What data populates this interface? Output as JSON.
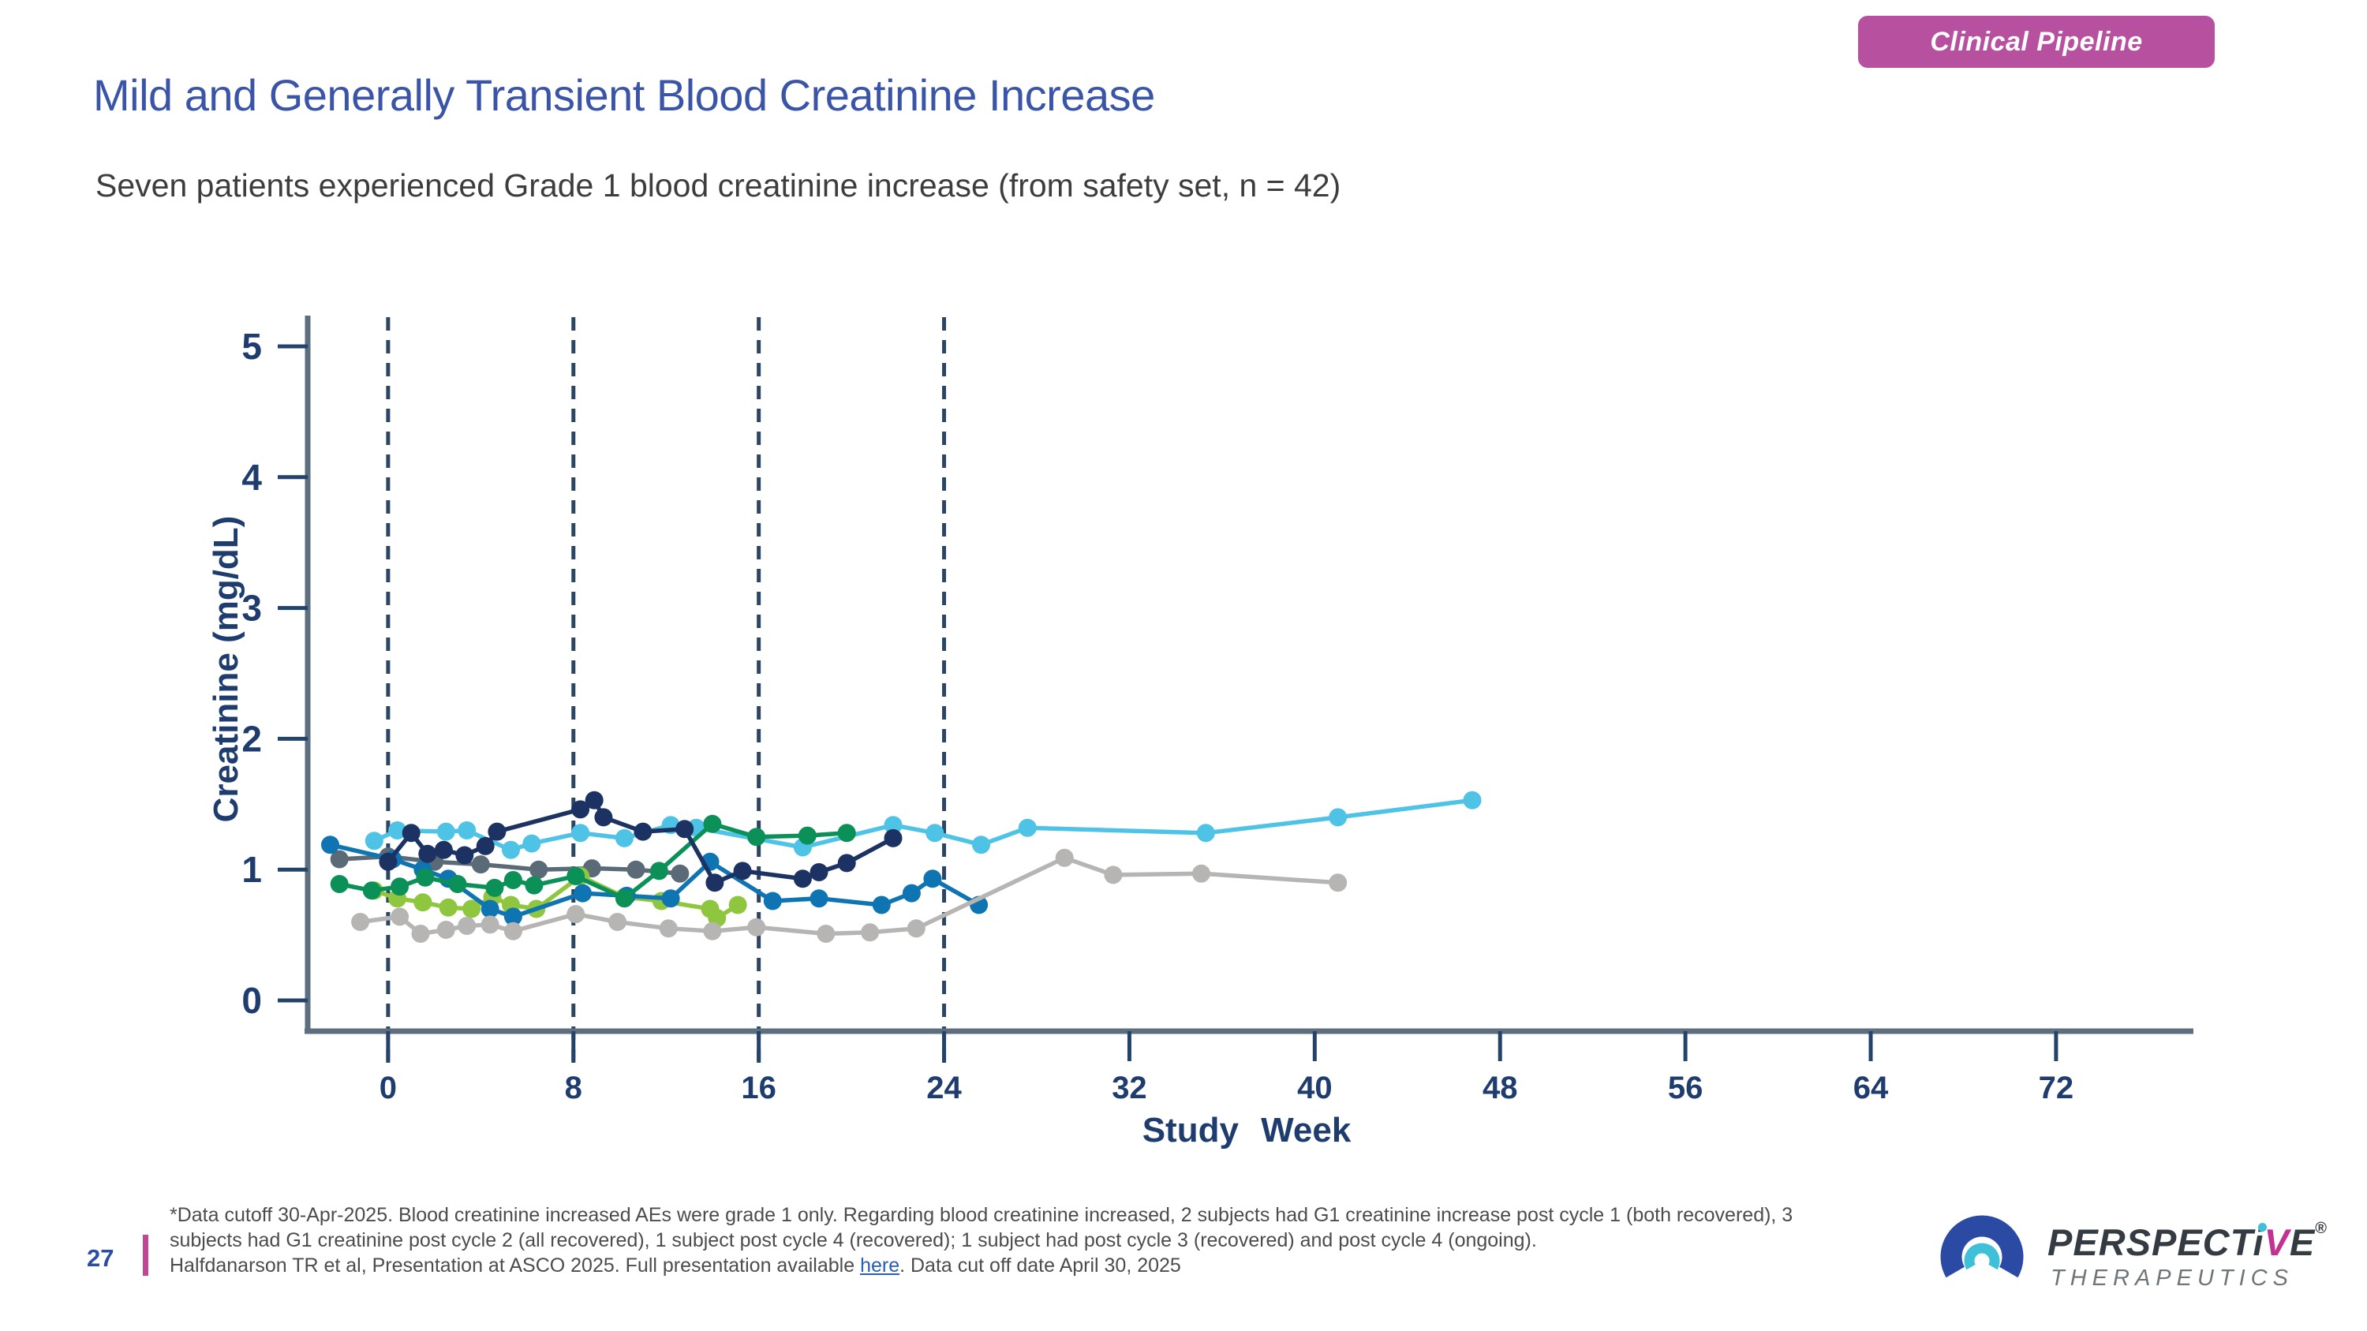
{
  "badge": {
    "label": "Clinical Pipeline",
    "bg_color": "#b6509f"
  },
  "header": {
    "title": "Mild and Generally Transient Blood Creatinine Increase",
    "subtitle": "Seven patients experienced Grade 1 blood creatinine increase (from safety set, n = 42)"
  },
  "colors": {
    "accent_magenta": "#b6509f",
    "title_blue": "#3a54a8",
    "axis_navy": "#1e3c6e",
    "axis_line_gray": "#5d6f7f",
    "link_blue": "#2b5fad"
  },
  "chart_data": {
    "type": "line",
    "title": "",
    "xlabel": "Study Week",
    "ylabel": "Creatinine (mg/dL)",
    "x_ticks": [
      0,
      8,
      16,
      24,
      32,
      40,
      48,
      56,
      64,
      72
    ],
    "y_ticks": [
      0,
      1,
      2,
      3,
      4,
      5
    ],
    "xlim": [
      -3.47,
      77.93
    ],
    "ylim": [
      -0.235,
      5.235
    ],
    "grid": false,
    "legend": "none",
    "reference_weeks_dashed": [
      0,
      8,
      16,
      24
    ],
    "unit_x": "weeks",
    "unit_y": "mg/dL",
    "series": [
      {
        "name": "patient-slate",
        "color": "#5a6a76",
        "points": [
          [
            -2.1,
            1.08
          ],
          [
            0.0,
            1.1
          ],
          [
            2.0,
            1.06
          ],
          [
            4.0,
            1.04
          ],
          [
            6.5,
            1.0
          ],
          [
            8.8,
            1.01
          ],
          [
            10.7,
            1.0
          ],
          [
            12.6,
            0.97
          ]
        ]
      },
      {
        "name": "patient-lime",
        "color": "#8fc640",
        "points": [
          [
            -0.6,
            0.84
          ],
          [
            0.4,
            0.78
          ],
          [
            1.5,
            0.75
          ],
          [
            2.6,
            0.71
          ],
          [
            3.6,
            0.7
          ],
          [
            4.5,
            0.79
          ],
          [
            5.3,
            0.73
          ],
          [
            6.4,
            0.7
          ],
          [
            8.3,
            0.95
          ],
          [
            10.2,
            0.79
          ],
          [
            11.8,
            0.76
          ],
          [
            13.9,
            0.7
          ],
          [
            14.2,
            0.63
          ],
          [
            15.1,
            0.73
          ]
        ]
      },
      {
        "name": "patient-blue",
        "color": "#0f74b2",
        "points": [
          [
            -2.5,
            1.19
          ],
          [
            0.2,
            1.08
          ],
          [
            1.5,
            1.0
          ],
          [
            2.6,
            0.93
          ],
          [
            4.4,
            0.7
          ],
          [
            5.4,
            0.64
          ],
          [
            8.4,
            0.82
          ],
          [
            10.3,
            0.8
          ],
          [
            12.2,
            0.78
          ],
          [
            13.9,
            1.06
          ],
          [
            16.6,
            0.76
          ],
          [
            18.6,
            0.78
          ],
          [
            21.3,
            0.73
          ],
          [
            22.6,
            0.82
          ],
          [
            23.5,
            0.93
          ],
          [
            25.5,
            0.73
          ]
        ]
      },
      {
        "name": "patient-gray",
        "color": "#b6b5b4",
        "points": [
          [
            -1.2,
            0.6
          ],
          [
            0.5,
            0.64
          ],
          [
            1.4,
            0.51
          ],
          [
            2.5,
            0.54
          ],
          [
            3.4,
            0.57
          ],
          [
            4.4,
            0.58
          ],
          [
            5.4,
            0.53
          ],
          [
            8.1,
            0.66
          ],
          [
            9.9,
            0.6
          ],
          [
            12.1,
            0.55
          ],
          [
            14.0,
            0.53
          ],
          [
            15.9,
            0.56
          ],
          [
            18.9,
            0.51
          ],
          [
            20.8,
            0.52
          ],
          [
            22.8,
            0.55
          ],
          [
            29.2,
            1.09
          ],
          [
            31.3,
            0.96
          ],
          [
            35.1,
            0.97
          ],
          [
            41.0,
            0.9
          ]
        ]
      },
      {
        "name": "patient-cyan",
        "color": "#4ec3e6",
        "points": [
          [
            -0.6,
            1.22
          ],
          [
            0.4,
            1.3
          ],
          [
            2.5,
            1.29
          ],
          [
            3.4,
            1.3
          ],
          [
            5.3,
            1.15
          ],
          [
            6.2,
            1.2
          ],
          [
            8.3,
            1.28
          ],
          [
            10.2,
            1.24
          ],
          [
            12.2,
            1.34
          ],
          [
            13.3,
            1.32
          ],
          [
            17.9,
            1.17
          ],
          [
            21.8,
            1.34
          ],
          [
            23.6,
            1.28
          ],
          [
            25.6,
            1.19
          ],
          [
            27.6,
            1.32
          ],
          [
            35.3,
            1.28
          ],
          [
            41.0,
            1.4
          ],
          [
            46.8,
            1.53
          ]
        ]
      },
      {
        "name": "patient-green",
        "color": "#0b9158",
        "points": [
          [
            -2.1,
            0.89
          ],
          [
            -0.7,
            0.84
          ],
          [
            0.5,
            0.87
          ],
          [
            1.6,
            0.94
          ],
          [
            3.0,
            0.89
          ],
          [
            4.6,
            0.86
          ],
          [
            5.4,
            0.92
          ],
          [
            6.3,
            0.88
          ],
          [
            8.1,
            0.95
          ],
          [
            10.2,
            0.78
          ],
          [
            11.7,
            0.99
          ],
          [
            14.0,
            1.35
          ],
          [
            15.9,
            1.25
          ],
          [
            18.1,
            1.26
          ],
          [
            19.8,
            1.28
          ]
        ]
      },
      {
        "name": "patient-navy",
        "color": "#1c3263",
        "points": [
          [
            0.0,
            1.06
          ],
          [
            1.0,
            1.28
          ],
          [
            1.7,
            1.12
          ],
          [
            2.4,
            1.15
          ],
          [
            3.3,
            1.11
          ],
          [
            4.2,
            1.18
          ],
          [
            4.7,
            1.29
          ],
          [
            8.3,
            1.46
          ],
          [
            8.9,
            1.53
          ],
          [
            9.3,
            1.4
          ],
          [
            11.0,
            1.29
          ],
          [
            12.8,
            1.31
          ],
          [
            14.1,
            0.9
          ],
          [
            15.3,
            0.99
          ],
          [
            17.9,
            0.93
          ],
          [
            18.6,
            0.98
          ],
          [
            19.8,
            1.05
          ],
          [
            21.8,
            1.24
          ]
        ]
      }
    ]
  },
  "footer": {
    "page_number": "27",
    "note_line1": "*Data cutoff 30-Apr-2025. Blood creatinine increased AEs were grade 1 only.  Regarding blood creatinine increased, 2 subjects had G1 creatinine increase post cycle 1 (both recovered), 3",
    "note_line2": "subjects had G1 creatinine post cycle 2 (all recovered), 1 subject post cycle 4 (recovered); 1 subject had post cycle 3 (recovered) and post cycle 4 (ongoing).",
    "note_line3_pre": "Halfdanarson TR et al, Presentation at ASCO 2025. Full presentation available ",
    "note_line3_link": "here",
    "note_line3_post": ". Data cut off date April 30, 2025"
  },
  "logo": {
    "brand_part1": "PERSPECT",
    "brand_i": "i",
    "brand_v": "V",
    "brand_part2": "E",
    "registered": "®",
    "subtext": "THERAPEUTICS"
  }
}
